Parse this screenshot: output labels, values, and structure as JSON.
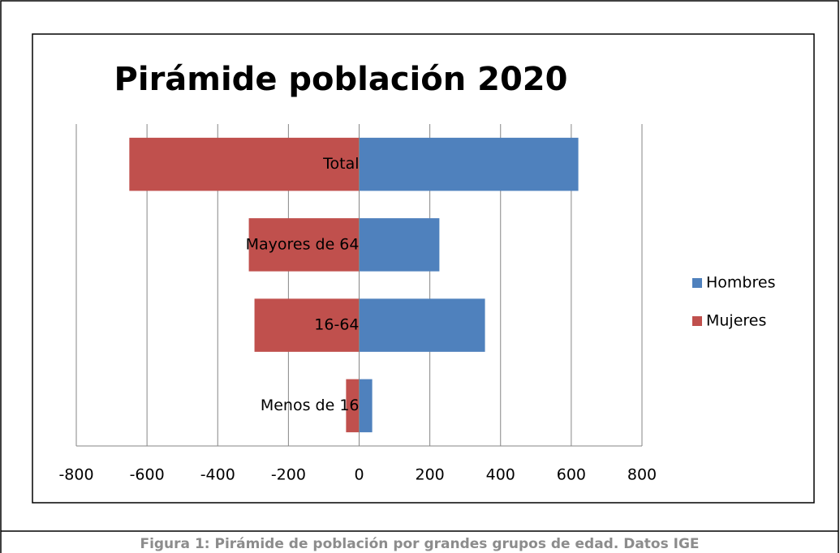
{
  "chart_data": {
    "type": "bar",
    "orientation": "horizontal",
    "title": "Pirámide población 2020",
    "categories": [
      "Total",
      "Mayores de 64",
      "16-64",
      "Menos de 16"
    ],
    "series": [
      {
        "name": "Hombres",
        "color": "#4f81bd",
        "values": [
          620,
          227,
          356,
          37
        ]
      },
      {
        "name": "Mujeres",
        "color": "#c0504d",
        "values": [
          -650,
          -312,
          -296,
          -37
        ]
      }
    ],
    "xlim": [
      -800,
      800
    ],
    "xticks": [
      -800,
      -600,
      -400,
      -200,
      0,
      200,
      400,
      600,
      800
    ],
    "grid": true,
    "legend": "right",
    "caption": "Figura 1: Pirámide de población por grandes grupos de edad. Datos IGE"
  }
}
